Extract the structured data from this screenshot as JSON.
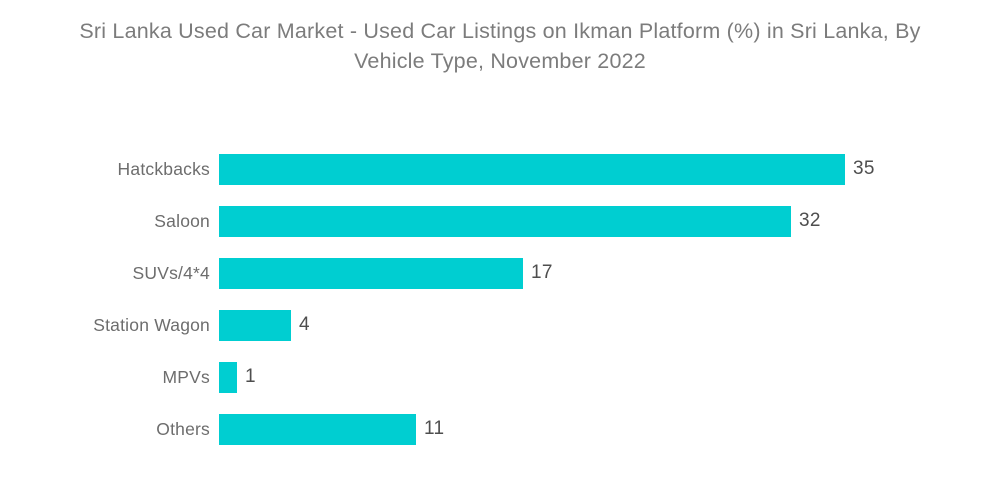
{
  "title": "Sri Lanka Used Car Market - Used Car Listings on Ikman Platform (%) in Sri Lanka, By Vehicle Type, November 2022",
  "colors": {
    "bar": "#00CED1",
    "title_text": "#7c7c7c",
    "category_text": "#6d6d6d",
    "value_text": "#4e4e4e",
    "background": "#ffffff"
  },
  "chart_data": {
    "type": "bar",
    "orientation": "horizontal",
    "title": "Sri Lanka Used Car Market - Used Car Listings on Ikman Platform (%) in Sri Lanka, By Vehicle Type, November 2022",
    "categories": [
      "Hatckbacks",
      "Saloon",
      "SUVs/4*4",
      "Station Wagon",
      "MPVs",
      "Others"
    ],
    "values": [
      35,
      32,
      17,
      4,
      1,
      11
    ],
    "unit": "%",
    "xlabel": "",
    "ylabel": "",
    "xlim": [
      0,
      35
    ],
    "grid": false,
    "axes_visible": false,
    "data_labels": true,
    "legend": "none"
  }
}
